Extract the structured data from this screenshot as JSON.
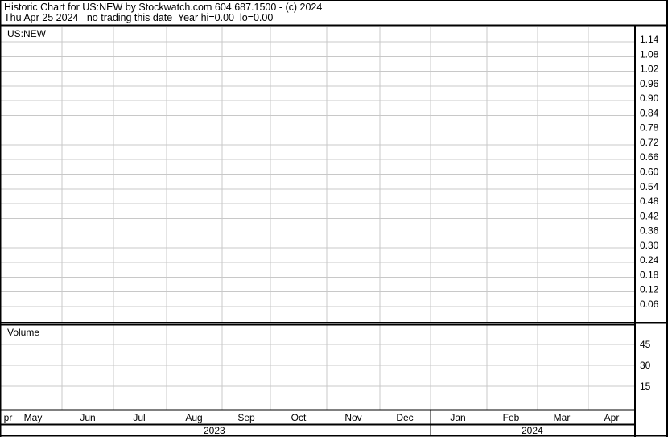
{
  "header": {
    "title": "Historic Chart for US:NEW by Stockwatch.com 604.687.1500 - (c) 2024",
    "subtitle": "Thu Apr 25 2024   no trading this date  Year hi=0.00  lo=0.00"
  },
  "chart_data": [
    {
      "type": "line",
      "title": "US:NEW",
      "series": [],
      "y_ticks": [
        "1.14",
        "1.08",
        "1.02",
        "0.96",
        "0.90",
        "0.84",
        "0.78",
        "0.72",
        "0.66",
        "0.60",
        "0.54",
        "0.48",
        "0.42",
        "0.36",
        "0.30",
        "0.24",
        "0.18",
        "0.12",
        "0.06"
      ],
      "ylim": [
        0.06,
        1.14
      ],
      "y_axis_position": "right",
      "grid": true
    },
    {
      "type": "bar",
      "title": "Volume",
      "series": [],
      "y_ticks": [
        "45",
        "30",
        "15"
      ],
      "y_axis_position": "right",
      "grid": true
    }
  ],
  "x_axis": {
    "months": [
      "pr",
      "May",
      "Jun",
      "Jul",
      "Aug",
      "Sep",
      "Oct",
      "Nov",
      "Dec",
      "Jan",
      "Feb",
      "Mar",
      "Apr"
    ],
    "years": [
      "2023",
      "2024"
    ]
  },
  "colors": {
    "grid": "#c8c8c8",
    "frame": "#000000",
    "background": "#ffffff"
  }
}
